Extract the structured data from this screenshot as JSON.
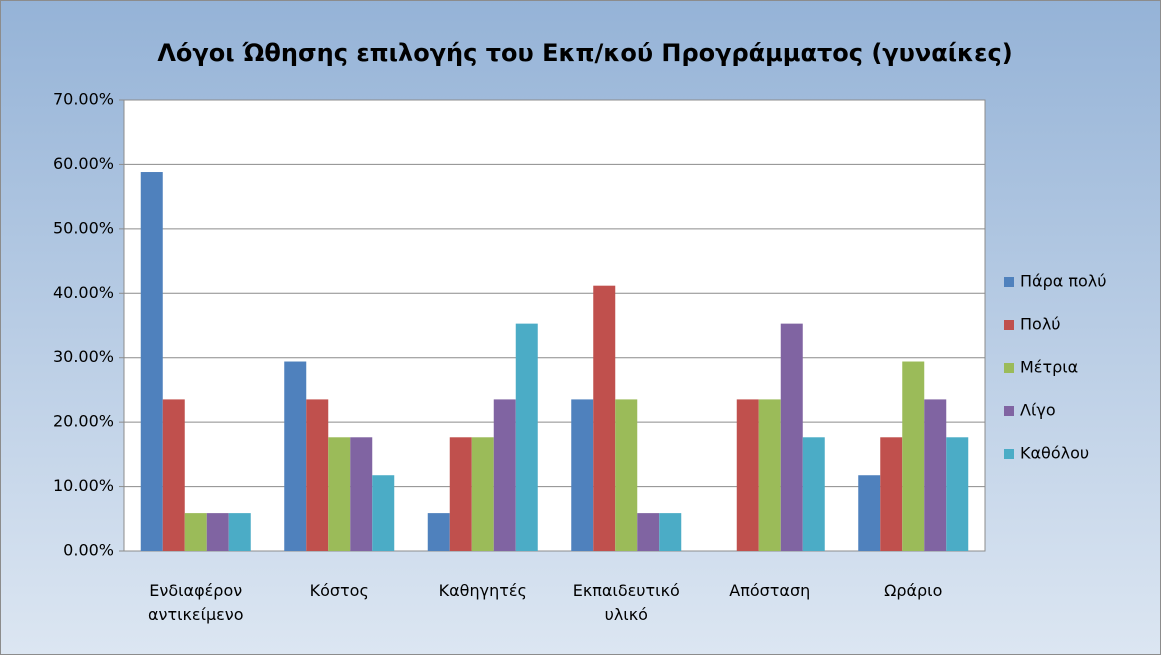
{
  "chart_data": {
    "type": "bar",
    "title": "Λόγοι Ώθησης επιλογής του Εκπ/κού Προγράμματος (γυναίκες)",
    "categories": [
      "Ενδιαφέρον αντικείμενο",
      "Κόστος",
      "Καθηγητές",
      "Εκπαιδευτικό υλικό",
      "Απόσταση",
      "Ωράριο"
    ],
    "series": [
      {
        "name": "Πάρα πολύ",
        "color": "#4f81bd",
        "values": [
          58.82,
          29.41,
          5.88,
          23.53,
          0,
          11.76
        ]
      },
      {
        "name": "Πολύ",
        "color": "#c0504d",
        "values": [
          23.53,
          23.53,
          17.65,
          41.18,
          23.53,
          17.65
        ]
      },
      {
        "name": "Μέτρια",
        "color": "#9bbb59",
        "values": [
          5.88,
          17.65,
          17.65,
          23.53,
          23.53,
          29.41
        ]
      },
      {
        "name": "Λίγο",
        "color": "#8064a2",
        "values": [
          5.88,
          17.65,
          23.53,
          5.88,
          35.29,
          23.53
        ]
      },
      {
        "name": "Καθόλου",
        "color": "#4bacc6",
        "values": [
          5.88,
          11.76,
          35.29,
          5.88,
          17.65,
          17.65
        ]
      }
    ],
    "ylim": [
      0,
      70
    ],
    "yticks": [
      {
        "value": 0,
        "label": "0.00%"
      },
      {
        "value": 10,
        "label": "10.00%"
      },
      {
        "value": 20,
        "label": "20.00%"
      },
      {
        "value": 30,
        "label": "30.00%"
      },
      {
        "value": 40,
        "label": "40.00%"
      },
      {
        "value": 50,
        "label": "50.00%"
      },
      {
        "value": 60,
        "label": "60.00%"
      },
      {
        "value": 70,
        "label": "70.00%"
      }
    ],
    "grid": true,
    "legend": "right"
  }
}
